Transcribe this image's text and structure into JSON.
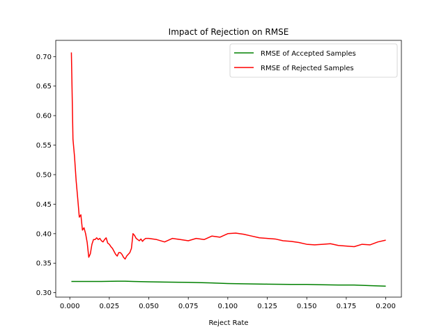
{
  "chart_data": {
    "type": "line",
    "title": "Impact of Rejection on RMSE",
    "xlabel": "Reject Rate",
    "ylabel": "",
    "xlim": [
      -0.0089,
      0.2099
    ],
    "ylim": [
      0.2925,
      0.7275
    ],
    "xticks": [
      0.0,
      0.025,
      0.05,
      0.075,
      0.1,
      0.125,
      0.15,
      0.175,
      0.2
    ],
    "xtick_labels": [
      "0.000",
      "0.025",
      "0.050",
      "0.075",
      "0.100",
      "0.125",
      "0.150",
      "0.175",
      "0.200"
    ],
    "yticks": [
      0.3,
      0.35,
      0.4,
      0.45,
      0.5,
      0.55,
      0.6,
      0.65,
      0.7
    ],
    "ytick_labels": [
      "0.30",
      "0.35",
      "0.40",
      "0.45",
      "0.50",
      "0.55",
      "0.60",
      "0.65",
      "0.70"
    ],
    "grid": false,
    "legend_position": "top-right",
    "series": [
      {
        "name": "RMSE of Accepted Samples",
        "color": "#008000",
        "x": [
          0.001,
          0.01,
          0.02,
          0.03,
          0.035,
          0.04,
          0.05,
          0.06,
          0.075,
          0.09,
          0.1,
          0.11,
          0.125,
          0.14,
          0.15,
          0.16,
          0.17,
          0.18,
          0.19,
          0.2
        ],
        "y": [
          0.319,
          0.319,
          0.319,
          0.3195,
          0.3195,
          0.319,
          0.3185,
          0.318,
          0.3175,
          0.3165,
          0.3155,
          0.315,
          0.3145,
          0.314,
          0.314,
          0.3135,
          0.313,
          0.313,
          0.312,
          0.311
        ]
      },
      {
        "name": "RMSE of Rejected Samples",
        "color": "#ff0000",
        "x": [
          0.001,
          0.002,
          0.003,
          0.004,
          0.005,
          0.006,
          0.007,
          0.008,
          0.009,
          0.01,
          0.011,
          0.012,
          0.013,
          0.014,
          0.015,
          0.016,
          0.017,
          0.018,
          0.019,
          0.02,
          0.021,
          0.022,
          0.023,
          0.024,
          0.025,
          0.026,
          0.027,
          0.028,
          0.029,
          0.03,
          0.031,
          0.032,
          0.033,
          0.034,
          0.035,
          0.036,
          0.037,
          0.038,
          0.039,
          0.04,
          0.041,
          0.042,
          0.043,
          0.044,
          0.045,
          0.046,
          0.047,
          0.048,
          0.05,
          0.055,
          0.06,
          0.065,
          0.07,
          0.075,
          0.08,
          0.085,
          0.09,
          0.095,
          0.1,
          0.105,
          0.11,
          0.115,
          0.12,
          0.125,
          0.13,
          0.135,
          0.14,
          0.145,
          0.15,
          0.155,
          0.16,
          0.165,
          0.17,
          0.175,
          0.18,
          0.185,
          0.19,
          0.195,
          0.2
        ],
        "y": [
          0.707,
          0.56,
          0.53,
          0.49,
          0.46,
          0.428,
          0.432,
          0.406,
          0.41,
          0.4,
          0.385,
          0.36,
          0.366,
          0.382,
          0.39,
          0.39,
          0.393,
          0.39,
          0.392,
          0.388,
          0.386,
          0.39,
          0.393,
          0.384,
          0.382,
          0.378,
          0.375,
          0.37,
          0.365,
          0.362,
          0.368,
          0.368,
          0.365,
          0.36,
          0.357,
          0.362,
          0.365,
          0.368,
          0.375,
          0.4,
          0.397,
          0.392,
          0.39,
          0.388,
          0.391,
          0.387,
          0.39,
          0.392,
          0.392,
          0.39,
          0.386,
          0.392,
          0.39,
          0.388,
          0.392,
          0.39,
          0.396,
          0.394,
          0.4,
          0.401,
          0.399,
          0.396,
          0.393,
          0.392,
          0.391,
          0.388,
          0.387,
          0.385,
          0.382,
          0.381,
          0.382,
          0.383,
          0.38,
          0.379,
          0.378,
          0.382,
          0.381,
          0.386,
          0.389
        ]
      }
    ]
  }
}
